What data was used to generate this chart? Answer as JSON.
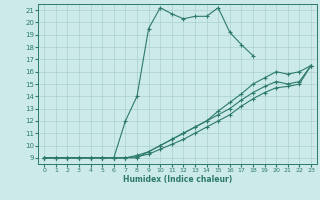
{
  "xlabel": "Humidex (Indice chaleur)",
  "bg_color": "#cceaea",
  "line_color": "#2d7a6a",
  "grid_color": "#aacfcf",
  "xlim": [
    -0.5,
    23.5
  ],
  "ylim": [
    8.5,
    21.5
  ],
  "xticks": [
    0,
    1,
    2,
    3,
    4,
    5,
    6,
    7,
    8,
    9,
    10,
    11,
    12,
    13,
    14,
    15,
    16,
    17,
    18,
    19,
    20,
    21,
    22,
    23
  ],
  "yticks": [
    9,
    10,
    11,
    12,
    13,
    14,
    15,
    16,
    17,
    18,
    19,
    20,
    21
  ],
  "lines": [
    {
      "x": [
        0,
        1,
        2,
        3,
        4,
        5,
        6,
        7,
        8,
        9,
        10,
        11,
        12,
        13,
        14,
        15,
        16,
        17,
        18,
        19,
        20,
        21,
        22
      ],
      "y": [
        9,
        9,
        9,
        9,
        9,
        9,
        9,
        12,
        14,
        19.5,
        21.2,
        20.7,
        20.3,
        20.5,
        20.5,
        21.2,
        19.2,
        18.2,
        17.3,
        null,
        null,
        null,
        null
      ]
    },
    {
      "x": [
        0,
        1,
        2,
        3,
        4,
        5,
        6,
        7,
        8,
        9,
        10,
        11,
        12,
        13,
        14,
        15,
        16,
        17,
        18,
        19,
        20,
        21,
        22,
        23
      ],
      "y": [
        9,
        9,
        9,
        9,
        9,
        9,
        9,
        9,
        9,
        9.5,
        10,
        10.5,
        11,
        11.5,
        12,
        12.8,
        13.5,
        14.2,
        15,
        15.5,
        16,
        15.8,
        16,
        16.5
      ]
    },
    {
      "x": [
        0,
        1,
        2,
        3,
        4,
        5,
        6,
        7,
        8,
        9,
        10,
        11,
        12,
        13,
        14,
        15,
        16,
        17,
        18,
        19,
        20,
        21,
        22,
        23
      ],
      "y": [
        9,
        9,
        9,
        9,
        9,
        9,
        9,
        9,
        9.2,
        9.5,
        10,
        10.5,
        11,
        11.5,
        12,
        12.5,
        13,
        13.7,
        14.3,
        14.8,
        15.2,
        15.0,
        15.2,
        16.5
      ]
    },
    {
      "x": [
        0,
        1,
        2,
        3,
        4,
        5,
        6,
        7,
        8,
        9,
        10,
        11,
        12,
        13,
        14,
        15,
        16,
        17,
        18,
        19,
        20,
        21,
        22,
        23
      ],
      "y": [
        9,
        9,
        9,
        9,
        9,
        9,
        9,
        9,
        9.1,
        9.3,
        9.7,
        10.1,
        10.5,
        11.0,
        11.5,
        12.0,
        12.5,
        13.2,
        13.8,
        14.3,
        14.7,
        14.8,
        15.0,
        16.5
      ]
    }
  ]
}
